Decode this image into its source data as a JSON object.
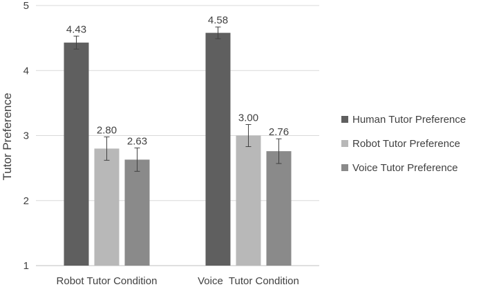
{
  "chart_data": {
    "type": "bar",
    "ylabel": "Tutor Preference",
    "xlabel": "",
    "ylim": [
      1,
      5
    ],
    "yticks": [
      1,
      2,
      3,
      4,
      5
    ],
    "grid": true,
    "legend_position": "right",
    "categories": [
      "Robot Tutor Condition",
      "Voice  Tutor Condition"
    ],
    "series": [
      {
        "name": "Human Tutor Preference",
        "color": "#5f5f5f",
        "values": [
          4.43,
          4.58
        ],
        "labels": [
          "4.43",
          "4.58"
        ],
        "error": [
          0.1,
          0.09
        ]
      },
      {
        "name": "Robot Tutor Preference",
        "color": "#b8b8b8",
        "values": [
          2.8,
          3.0
        ],
        "labels": [
          "2.80",
          "3.00"
        ],
        "error": [
          0.18,
          0.17
        ]
      },
      {
        "name": "Voice Tutor Preference",
        "color": "#8a8a8a",
        "values": [
          2.63,
          2.76
        ],
        "labels": [
          "2.63",
          "2.76"
        ],
        "error": [
          0.18,
          0.19
        ]
      }
    ]
  }
}
